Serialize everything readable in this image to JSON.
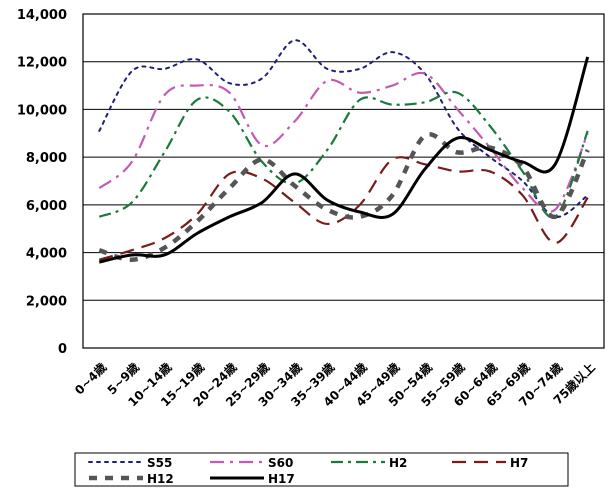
{
  "chart_data": {
    "type": "line",
    "title": "",
    "xlabel": "",
    "ylabel": "",
    "ylim": [
      0,
      14000
    ],
    "yticks": [
      0,
      2000,
      4000,
      6000,
      8000,
      10000,
      12000,
      14000
    ],
    "ytick_labels": [
      "0",
      "2,000",
      "4,000",
      "6,000",
      "8,000",
      "10,000",
      "12,000",
      "14,000"
    ],
    "grid": true,
    "legend_position": "bottom",
    "categories": [
      "0~4歳",
      "5~9歳",
      "10~14歳",
      "15~19歳",
      "20~24歳",
      "25~29歳",
      "30~34歳",
      "35~39歳",
      "40~44歳",
      "45~49歳",
      "50~54歳",
      "55~59歳",
      "60~64歳",
      "65~69歳",
      "70~74歳",
      "75歳以上"
    ],
    "series": [
      {
        "name": "S55",
        "color": "#1f1f7a",
        "dash": "dot",
        "values": [
          9100,
          11600,
          11700,
          12100,
          11100,
          11300,
          12900,
          11700,
          11700,
          12400,
          11500,
          9200,
          8000,
          7000,
          5500,
          6400
        ]
      },
      {
        "name": "S60",
        "color": "#c45ab3",
        "dash": "dashdot-long",
        "values": [
          6700,
          7800,
          10600,
          11000,
          10700,
          8500,
          9500,
          11200,
          10700,
          11000,
          11500,
          10000,
          8400,
          6700,
          5800,
          9000
        ]
      },
      {
        "name": "H2",
        "color": "#1a7a3c",
        "dash": "dashdot",
        "values": [
          5500,
          6100,
          8200,
          10400,
          9900,
          7800,
          6900,
          8300,
          10400,
          10200,
          10300,
          10700,
          9300,
          7400,
          5500,
          9100
        ]
      },
      {
        "name": "H7",
        "color": "#7a1a1a",
        "dash": "longdash",
        "values": [
          3700,
          4100,
          4600,
          5600,
          7300,
          7100,
          6100,
          5200,
          6000,
          7900,
          7700,
          7400,
          7400,
          6400,
          4400,
          6300
        ]
      },
      {
        "name": "H12",
        "color": "#555555",
        "dash": "shortdash",
        "values": [
          4100,
          3700,
          4200,
          5300,
          6700,
          7900,
          6800,
          5800,
          5500,
          6400,
          8900,
          8200,
          8400,
          7600,
          5500,
          8300
        ]
      },
      {
        "name": "H17",
        "color": "#000000",
        "dash": "solid",
        "values": [
          3600,
          3900,
          3900,
          4800,
          5500,
          6100,
          7300,
          6200,
          5700,
          5600,
          7500,
          8800,
          8300,
          7800,
          7700,
          12200
        ]
      }
    ]
  }
}
